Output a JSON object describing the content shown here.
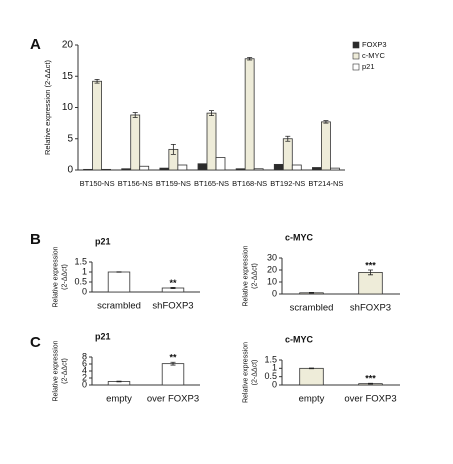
{
  "chart_data": [
    {
      "type": "bar",
      "panel": "A",
      "ylabel": [
        "Relative expression (2-ΔΔct)"
      ],
      "categories": [
        "BT150-NS",
        "BT156-NS",
        "BT159-NS",
        "BT165-NS",
        "BT168-NS",
        "BT192-NS",
        "BT214-NS"
      ],
      "series": [
        {
          "name": "FOXP3",
          "color": "#2b2b2b",
          "values": [
            0.1,
            0.2,
            0.3,
            1.0,
            0.2,
            0.9,
            0.4
          ]
        },
        {
          "name": "c-MYC",
          "color": "#eeecd9",
          "values": [
            14.2,
            8.8,
            3.3,
            9.1,
            17.8,
            5.0,
            7.7
          ],
          "errors": [
            0.3,
            0.4,
            0.8,
            0.4,
            0.2,
            0.4,
            0.2
          ]
        },
        {
          "name": "p21",
          "color": "#ffffff",
          "values": [
            0.1,
            0.6,
            0.8,
            2.0,
            0.2,
            0.8,
            0.3
          ]
        }
      ],
      "ylim": [
        0,
        20
      ],
      "yticks": [
        0,
        5,
        10,
        15,
        20
      ],
      "legend": "right"
    },
    {
      "type": "bar",
      "panel": "B",
      "title": "p21",
      "ylabel": [
        "Relative expression",
        "(2-ΔΔct)"
      ],
      "categories": [
        "scrambled",
        "shFOXP3"
      ],
      "values": [
        1.0,
        0.2
      ],
      "errors": [
        0.01,
        0.03
      ],
      "color": "#ffffff",
      "annotations": [
        null,
        "**"
      ],
      "ylim": [
        0,
        1.5
      ],
      "yticks": [
        0,
        0.5,
        1,
        1.5
      ]
    },
    {
      "type": "bar",
      "title": "c-MYC",
      "ylabel": [
        "Relative expression",
        "(2-ΔΔct)"
      ],
      "categories": [
        "scrambled",
        "shFOXP3"
      ],
      "values": [
        1,
        18
      ],
      "errors": [
        0.3,
        2
      ],
      "color": "#eeecd9",
      "annotations": [
        null,
        "***"
      ],
      "ylim": [
        0,
        30
      ],
      "yticks": [
        0,
        10,
        20,
        30
      ]
    },
    {
      "type": "bar",
      "panel": "C",
      "title": "p21",
      "ylabel": [
        "Relative expression",
        "(2-ΔΔct)"
      ],
      "categories": [
        "empty",
        "over FOXP3"
      ],
      "values": [
        1,
        6.1
      ],
      "errors": [
        0.1,
        0.4
      ],
      "color": "#ffffff",
      "annotations": [
        null,
        "**"
      ],
      "ylim": [
        0,
        8
      ],
      "yticks": [
        0,
        2,
        4,
        6,
        8
      ]
    },
    {
      "type": "bar",
      "title": "c-MYC",
      "ylabel": [
        "Relative expression",
        "(2-ΔΔct)"
      ],
      "categories": [
        "empty",
        "over FOXP3"
      ],
      "values": [
        1.0,
        0.08
      ],
      "errors": [
        0.02,
        0.02
      ],
      "color": "#eeecd9",
      "annotations": [
        null,
        "***"
      ],
      "ylim": [
        0,
        1.5
      ],
      "yticks": [
        0,
        0.5,
        1,
        1.5
      ]
    }
  ]
}
